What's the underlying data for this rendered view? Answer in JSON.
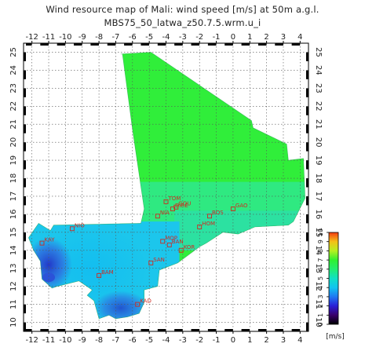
{
  "header": {
    "title": "Wind resource map of Mali: wind speed [m/s] at 50m a.g.l.",
    "subtitle": "MBS75_50_latwa_z50.7.5.wrm.u_i"
  },
  "map": {
    "lon_range": [
      -12.5,
      4.5
    ],
    "lat_range": [
      9.5,
      25.5
    ],
    "lon_ticks": [
      "-12",
      "-11",
      "-10",
      "-9",
      "-8",
      "-7",
      "-6",
      "-5",
      "-4",
      "-3",
      "-2",
      "-1",
      "0",
      "1",
      "2",
      "3",
      "4"
    ],
    "lat_ticks": [
      "10",
      "11",
      "12",
      "13",
      "14",
      "15",
      "16",
      "17",
      "18",
      "19",
      "20",
      "21",
      "22",
      "23",
      "24",
      "25"
    ],
    "grid": true,
    "frame": "checkered",
    "cities": [
      {
        "label": "TOM",
        "lon": -4.0,
        "lat": 16.7
      },
      {
        "label": "GOU",
        "lon": -3.4,
        "lat": 16.4
      },
      {
        "label": "DIRE",
        "lon": -3.6,
        "lat": 16.3
      },
      {
        "label": "NIA",
        "lon": -4.5,
        "lat": 15.9
      },
      {
        "label": "GAO",
        "lon": 0.0,
        "lat": 16.3
      },
      {
        "label": "BOS",
        "lon": -1.4,
        "lat": 15.9
      },
      {
        "label": "HOM",
        "lon": -2.0,
        "lat": 15.3
      },
      {
        "label": "NIO",
        "lon": -9.6,
        "lat": 15.2
      },
      {
        "label": "KAY",
        "lon": -11.4,
        "lat": 14.4
      },
      {
        "label": "MOP",
        "lon": -4.2,
        "lat": 14.5
      },
      {
        "label": "BAN",
        "lon": -3.8,
        "lat": 14.3
      },
      {
        "label": "KOR",
        "lon": -3.1,
        "lat": 14.0
      },
      {
        "label": "SAN",
        "lon": -4.9,
        "lat": 13.3
      },
      {
        "label": "BAM",
        "lon": -8.0,
        "lat": 12.6
      },
      {
        "label": "KAD",
        "lon": -5.7,
        "lat": 11.0
      }
    ]
  },
  "legend": {
    "unit": "[m/s]",
    "range": [
      0,
      10
    ],
    "ticks": [
      "0",
      "1",
      "2",
      "3",
      "4",
      "5",
      "6",
      "7",
      "8",
      "9",
      "10"
    ],
    "colors": [
      "#000000",
      "#3a006b",
      "#2a1fd6",
      "#1f78f2",
      "#10c4f0",
      "#10e0c4",
      "#22ee70",
      "#30f030",
      "#b6f020",
      "#f4c016",
      "#f43c12"
    ]
  },
  "colors": {
    "wind_north": "#30ee3a",
    "wind_central": "#2fe88e",
    "wind_southeast": "#2bdcb8",
    "wind_southwest": "#1cc6ec",
    "wind_low": "#2b52d8",
    "city_marker": "#cf2a20"
  }
}
